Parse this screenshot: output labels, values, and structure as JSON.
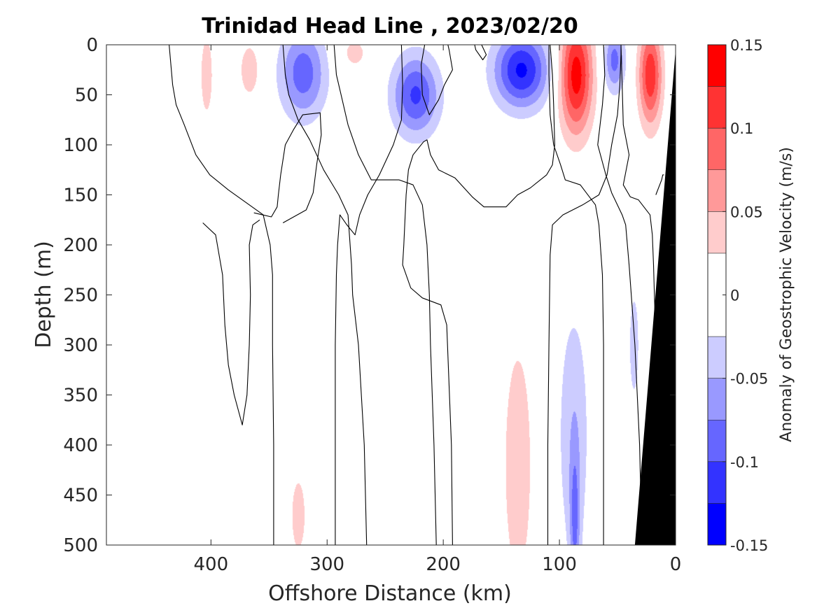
{
  "chart_data": {
    "type": "heatmap",
    "subtype": "filled-contour-section",
    "title": "Trinidad Head Line , 2023/02/20",
    "xlabel": "Offshore Distance (km)",
    "ylabel": "Depth (m)",
    "colorbar_label": "Anomaly of Geostrophic Velocity (m/s)",
    "xlim": [
      490,
      0
    ],
    "ylim": [
      500,
      0
    ],
    "x_ticks": [
      {
        "value": 400,
        "label": "400"
      },
      {
        "value": 300,
        "label": "300"
      },
      {
        "value": 200,
        "label": "200"
      },
      {
        "value": 100,
        "label": "100"
      },
      {
        "value": 0,
        "label": "0"
      }
    ],
    "y_ticks": [
      {
        "value": 0,
        "label": "0"
      },
      {
        "value": 50,
        "label": "50"
      },
      {
        "value": 100,
        "label": "100"
      },
      {
        "value": 150,
        "label": "150"
      },
      {
        "value": 200,
        "label": "200"
      },
      {
        "value": 250,
        "label": "250"
      },
      {
        "value": 300,
        "label": "300"
      },
      {
        "value": 350,
        "label": "350"
      },
      {
        "value": 400,
        "label": "400"
      },
      {
        "value": 450,
        "label": "450"
      },
      {
        "value": 500,
        "label": "500"
      }
    ],
    "colorbar": {
      "range": [
        -0.15,
        0.15
      ],
      "ticks": [
        {
          "value": 0.15,
          "label": "0.15"
        },
        {
          "value": 0.1,
          "label": "0.1"
        },
        {
          "value": 0.05,
          "label": "0.05"
        },
        {
          "value": 0,
          "label": "0"
        },
        {
          "value": -0.05,
          "label": "-0.05"
        },
        {
          "value": -0.1,
          "label": "-0.1"
        },
        {
          "value": -0.15,
          "label": "-0.15"
        }
      ],
      "levels": [
        {
          "from": 0.125,
          "to": 0.15,
          "color": "#ff0000"
        },
        {
          "from": 0.1,
          "to": 0.125,
          "color": "#ff3333"
        },
        {
          "from": 0.075,
          "to": 0.1,
          "color": "#ff6666"
        },
        {
          "from": 0.05,
          "to": 0.075,
          "color": "#ff9999"
        },
        {
          "from": 0.025,
          "to": 0.05,
          "color": "#ffcccc"
        },
        {
          "from": -0.025,
          "to": 0.025,
          "color": "#ffffff"
        },
        {
          "from": -0.05,
          "to": -0.025,
          "color": "#ccccff"
        },
        {
          "from": -0.075,
          "to": -0.05,
          "color": "#9999ff"
        },
        {
          "from": -0.1,
          "to": -0.075,
          "color": "#6666ff"
        },
        {
          "from": -0.125,
          "to": -0.1,
          "color": "#3333ff"
        },
        {
          "from": -0.15,
          "to": -0.125,
          "color": "#0000ff"
        }
      ]
    },
    "bathymetry_color": "#000000",
    "bathymetry": [
      [
        0,
        5
      ],
      [
        35,
        500
      ],
      [
        0,
        500
      ]
    ],
    "blobs": [
      {
        "cx": 133,
        "cy": 25,
        "rx": 28,
        "ry": 45,
        "peak": -0.13
      },
      {
        "cx": 224,
        "cy": 50,
        "rx": 24,
        "ry": 48,
        "peak": -0.105
      },
      {
        "cx": 321,
        "cy": 28,
        "rx": 24,
        "ry": 55,
        "peak": -0.09
      },
      {
        "cx": 53,
        "cy": 15,
        "rx": 11,
        "ry": 38,
        "peak": -0.085
      },
      {
        "cx": 86,
        "cy": 30,
        "rx": 17,
        "ry": 70,
        "peak": 0.14
      },
      {
        "cx": 22,
        "cy": 30,
        "rx": 12,
        "ry": 60,
        "peak": 0.12
      },
      {
        "cx": 367,
        "cy": 25,
        "rx": 12,
        "ry": 38,
        "peak": 0.04
      },
      {
        "cx": 404,
        "cy": 30,
        "rx": 9,
        "ry": 70,
        "peak": 0.035
      },
      {
        "cx": 277,
        "cy": 8,
        "rx": 18,
        "ry": 25,
        "peak": 0.032
      },
      {
        "cx": 136,
        "cy": 420,
        "rx": 18,
        "ry": 180,
        "peak": 0.04
      },
      {
        "cx": 88,
        "cy": 390,
        "rx": 17,
        "ry": 165,
        "peak": -0.045
      },
      {
        "cx": 87,
        "cy": 480,
        "rx": 5,
        "ry": 90,
        "peak": -0.06
      },
      {
        "cx": 36,
        "cy": 300,
        "rx": 6,
        "ry": 75,
        "peak": -0.04
      },
      {
        "cx": 325,
        "cy": 470,
        "rx": 9,
        "ry": 55,
        "peak": 0.04
      }
    ],
    "zero_contours": [
      [
        [
          407,
          178
        ],
        [
          396,
          190
        ],
        [
          390,
          230
        ],
        [
          388,
          280
        ],
        [
          385,
          320
        ],
        [
          380,
          350
        ],
        [
          373,
          380
        ],
        [
          369,
          350
        ],
        [
          367,
          300
        ],
        [
          366,
          250
        ],
        [
          367,
          200
        ],
        [
          364,
          180
        ],
        [
          358,
          175
        ]
      ],
      [
        [
          363,
          168
        ],
        [
          348,
          172
        ],
        [
          343,
          162
        ],
        [
          342,
          150
        ],
        [
          340,
          130
        ],
        [
          336,
          100
        ],
        [
          329,
          85
        ],
        [
          321,
          70
        ],
        [
          306,
          68
        ],
        [
          305,
          90
        ],
        [
          309,
          120
        ],
        [
          312,
          148
        ],
        [
          318,
          165
        ],
        [
          338,
          178
        ]
      ],
      [
        [
          346,
          500
        ],
        [
          346,
          400
        ],
        [
          347,
          300
        ],
        [
          347,
          230
        ],
        [
          349,
          200
        ],
        [
          355,
          170
        ],
        [
          367,
          160
        ],
        [
          385,
          145
        ],
        [
          401,
          130
        ],
        [
          413,
          110
        ],
        [
          423,
          80
        ],
        [
          430,
          60
        ],
        [
          433,
          40
        ],
        [
          436,
          0
        ]
      ],
      [
        [
          293,
          500
        ],
        [
          293,
          400
        ],
        [
          293,
          300
        ],
        [
          292,
          230
        ],
        [
          291,
          200
        ],
        [
          289,
          170
        ],
        [
          283,
          180
        ],
        [
          276,
          190
        ],
        [
          274,
          180
        ],
        [
          272,
          170
        ],
        [
          265,
          150
        ],
        [
          255,
          130
        ],
        [
          243,
          100
        ],
        [
          236,
          75
        ],
        [
          235,
          40
        ],
        [
          236,
          0
        ]
      ],
      [
        [
          266,
          500
        ],
        [
          268,
          400
        ],
        [
          273,
          300
        ],
        [
          278,
          250
        ],
        [
          279,
          220
        ],
        [
          282,
          170
        ],
        [
          290,
          150
        ],
        [
          303,
          125
        ],
        [
          315,
          95
        ],
        [
          325,
          75
        ],
        [
          333,
          50
        ],
        [
          336,
          30
        ],
        [
          338,
          0
        ]
      ],
      [
        [
          206,
          500
        ],
        [
          208,
          400
        ],
        [
          211,
          300
        ],
        [
          212,
          250
        ],
        [
          214,
          200
        ],
        [
          218,
          160
        ],
        [
          226,
          140
        ],
        [
          238,
          135
        ],
        [
          262,
          135
        ],
        [
          273,
          110
        ],
        [
          282,
          80
        ],
        [
          288,
          50
        ],
        [
          292,
          30
        ],
        [
          294,
          0
        ]
      ],
      [
        [
          192,
          500
        ],
        [
          193,
          400
        ],
        [
          197,
          280
        ],
        [
          202,
          260
        ],
        [
          218,
          253
        ],
        [
          228,
          243
        ],
        [
          235,
          220
        ],
        [
          234,
          200
        ],
        [
          232,
          150
        ],
        [
          230,
          125
        ],
        [
          226,
          110
        ],
        [
          217,
          97
        ],
        [
          214,
          95
        ],
        [
          211,
          110
        ],
        [
          204,
          125
        ],
        [
          190,
          133
        ],
        [
          175,
          152
        ],
        [
          165,
          162
        ],
        [
          146,
          162
        ],
        [
          136,
          150
        ],
        [
          125,
          143
        ],
        [
          111,
          130
        ],
        [
          106,
          120
        ],
        [
          104,
          100
        ],
        [
          105,
          60
        ],
        [
          106,
          30
        ],
        [
          108,
          0
        ]
      ],
      [
        [
          167,
          0
        ],
        [
          163,
          10
        ],
        [
          166,
          15
        ],
        [
          172,
          5
        ],
        [
          173,
          0
        ]
      ],
      [
        [
          216,
          0
        ],
        [
          219,
          20
        ],
        [
          218,
          50
        ],
        [
          212,
          70
        ],
        [
          204,
          55
        ],
        [
          199,
          40
        ],
        [
          192,
          25
        ],
        [
          195,
          5
        ],
        [
          196,
          0
        ]
      ],
      [
        [
          110,
          500
        ],
        [
          110,
          400
        ],
        [
          109,
          300
        ],
        [
          108,
          210
        ],
        [
          106,
          180
        ],
        [
          97,
          170
        ],
        [
          80,
          160
        ],
        [
          66,
          150
        ],
        [
          59,
          130
        ],
        [
          55,
          100
        ],
        [
          50,
          70
        ],
        [
          48,
          40
        ],
        [
          47,
          10
        ],
        [
          47,
          0
        ]
      ],
      [
        [
          62,
          500
        ],
        [
          62,
          400
        ],
        [
          62,
          300
        ],
        [
          63,
          230
        ],
        [
          66,
          180
        ],
        [
          69,
          160
        ],
        [
          82,
          140
        ],
        [
          95,
          135
        ],
        [
          99,
          120
        ],
        [
          105,
          100
        ],
        [
          108,
          70
        ],
        [
          109,
          30
        ],
        [
          109,
          0
        ]
      ],
      [
        [
          29,
          500
        ],
        [
          31,
          400
        ],
        [
          35,
          300
        ],
        [
          40,
          220
        ],
        [
          43,
          180
        ],
        [
          46,
          170
        ],
        [
          55,
          148
        ],
        [
          60,
          130
        ],
        [
          67,
          100
        ],
        [
          63,
          60
        ],
        [
          61,
          30
        ],
        [
          62,
          0
        ]
      ],
      [
        [
          16,
          500
        ],
        [
          16,
          400
        ],
        [
          17,
          300
        ],
        [
          19,
          220
        ],
        [
          20,
          190
        ],
        [
          22,
          170
        ],
        [
          32,
          155
        ],
        [
          39,
          152
        ],
        [
          45,
          140
        ],
        [
          40,
          110
        ],
        [
          45,
          80
        ],
        [
          46,
          40
        ],
        [
          47,
          0
        ]
      ],
      [
        [
          17,
          150
        ],
        [
          12,
          135
        ],
        [
          11,
          130
        ],
        [
          10,
          130
        ]
      ]
    ]
  }
}
